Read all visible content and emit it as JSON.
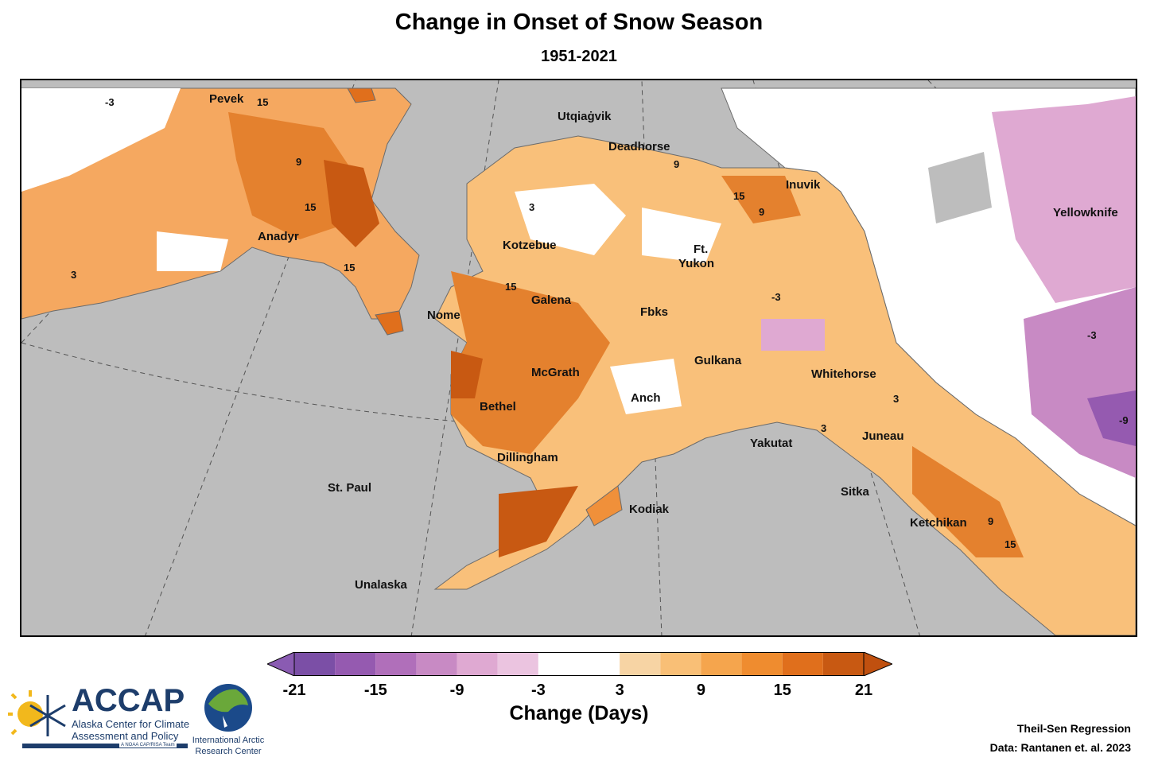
{
  "title": "Change in Onset of Snow Season",
  "subtitle": "1951-2021",
  "map": {
    "places": [
      {
        "name": "Pevek"
      },
      {
        "name": "Anadyr"
      },
      {
        "name": "Utqiaġvik"
      },
      {
        "name": "Deadhorse"
      },
      {
        "name": "Inuvik"
      },
      {
        "name": "Yellowknife"
      },
      {
        "name": "Kotzebue"
      },
      {
        "name": "Ft."
      },
      {
        "name": "Yukon"
      },
      {
        "name": "Nome"
      },
      {
        "name": "Galena"
      },
      {
        "name": "Fbks"
      },
      {
        "name": "Gulkana"
      },
      {
        "name": "McGrath"
      },
      {
        "name": "Whitehorse"
      },
      {
        "name": "Bethel"
      },
      {
        "name": "Anch"
      },
      {
        "name": "Yakutat"
      },
      {
        "name": "Juneau"
      },
      {
        "name": "Dillingham"
      },
      {
        "name": "St. Paul"
      },
      {
        "name": "Kodiak"
      },
      {
        "name": "Sitka"
      },
      {
        "name": "Ketchikan"
      },
      {
        "name": "Unalaska"
      }
    ],
    "contour_labels": [
      "15",
      "9",
      "15",
      "15",
      "3",
      "3",
      "-3",
      "9",
      "15",
      "9",
      "15",
      "-3",
      "3",
      "-9",
      "9",
      "15",
      "3",
      "-3"
    ]
  },
  "legend": {
    "title": "Change (Days)",
    "ticks": [
      "-21",
      "-15",
      "-9",
      "-3",
      "3",
      "9",
      "15",
      "21"
    ],
    "colors": [
      "#7b4fa6",
      "#955ab0",
      "#b06fba",
      "#c88ac4",
      "#dfa9d2",
      "#ebc4e0",
      "#ffffff",
      "#ffffff",
      "#f7d4a4",
      "#f9bf76",
      "#f5a54d",
      "#ef8c2f",
      "#e06f1c",
      "#c85912"
    ],
    "under_color": "#8a5bb2",
    "over_color": "#c0500f"
  },
  "credits": {
    "line1": "Theil-Sen Regression",
    "line2": "Data: Rantanen et. al. 2023"
  },
  "logos": {
    "accap_name": "ACCAP",
    "accap_line1": "Alaska Center for Climate",
    "accap_line2": "Assessment and Policy",
    "accap_tag": "A NOAA CAP/RISA Team",
    "iarc_line1": "International Arctic",
    "iarc_line2": "Research Center"
  }
}
